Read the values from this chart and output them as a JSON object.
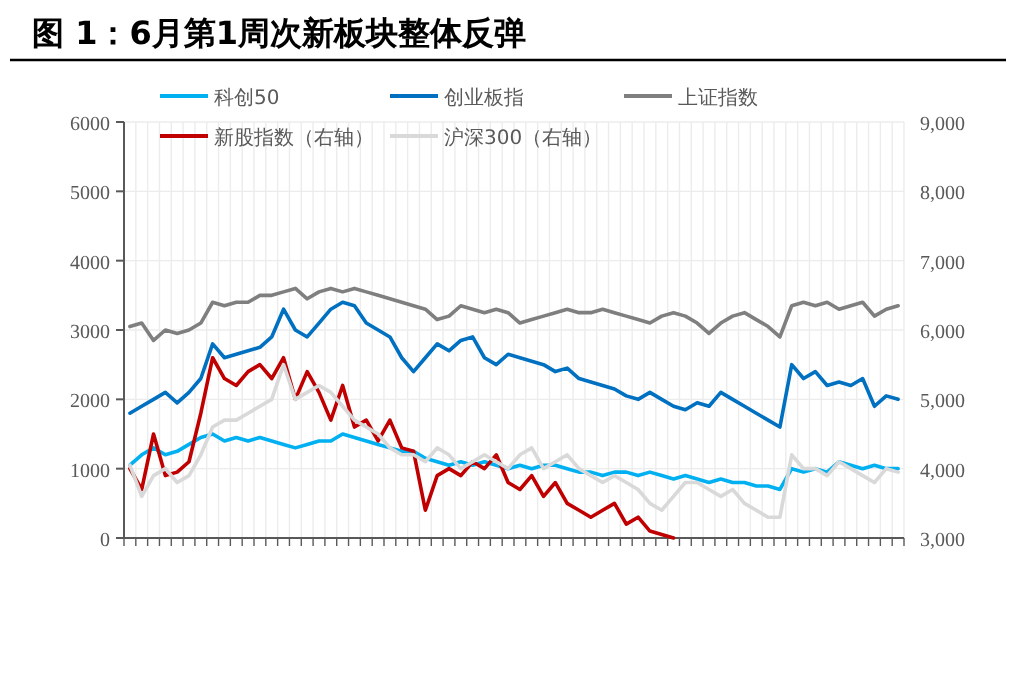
{
  "chart_data": {
    "type": "line",
    "title": "图 1：6月第1周次新板块整体反弹",
    "categories": [
      null,
      null,
      null,
      null,
      null,
      null,
      null,
      null,
      null,
      null,
      null,
      null,
      null,
      null,
      null,
      null,
      null,
      null,
      null,
      null,
      null,
      null,
      null,
      null,
      null,
      null,
      null,
      null,
      null,
      null,
      null,
      null,
      null,
      null,
      null,
      null,
      null,
      null,
      null,
      null,
      null,
      null,
      null,
      null,
      null,
      null,
      null,
      null,
      null,
      null,
      null,
      null,
      null,
      null,
      null,
      null,
      null,
      null,
      null,
      null,
      null,
      null,
      null,
      null,
      null,
      null
    ],
    "ylim": [
      0,
      6000
    ],
    "yticks": [
      0,
      1000,
      2000,
      3000,
      4000,
      5000,
      6000
    ],
    "y2lim": [
      3000,
      9000
    ],
    "y2ticks": [
      {
        "value": 3000,
        "label": "3,000"
      },
      {
        "value": 4000,
        "label": "4,000"
      },
      {
        "value": 5000,
        "label": "5,000"
      },
      {
        "value": 6000,
        "label": "6,000"
      },
      {
        "value": 7000,
        "label": "7,000"
      },
      {
        "value": 8000,
        "label": "8,000"
      },
      {
        "value": 9000,
        "label": "9,000"
      }
    ],
    "grid": true,
    "legend": "top",
    "line_style": "solid",
    "marker": "none",
    "series": [
      {
        "name": "科创50",
        "color": "#00b0f0",
        "values": [
          1050,
          1200,
          1300,
          1200,
          1250,
          1350,
          1450,
          1500,
          1400,
          1450,
          1400,
          1450,
          1400,
          1350,
          1300,
          1350,
          1400,
          1400,
          1500,
          1450,
          1400,
          1350,
          1300,
          1250,
          1250,
          1150,
          1100,
          1050,
          1100,
          1050,
          1100,
          1050,
          1000,
          1050,
          1000,
          1050,
          1050,
          1000,
          950,
          950,
          900,
          950,
          950,
          900,
          950,
          900,
          850,
          900,
          850,
          800,
          850,
          800,
          800,
          750,
          750,
          700,
          1000,
          950,
          1000,
          950,
          1100,
          1050,
          1000,
          1050,
          1000,
          1000
        ]
      },
      {
        "name": "创业板指",
        "color": "#0070c0",
        "values": [
          1800,
          1900,
          2000,
          2100,
          1950,
          2100,
          2300,
          2800,
          2600,
          2650,
          2700,
          2750,
          2900,
          3300,
          3000,
          2900,
          3100,
          3300,
          3400,
          3350,
          3100,
          3000,
          2900,
          2600,
          2400,
          2600,
          2800,
          2700,
          2850,
          2900,
          2600,
          2500,
          2650,
          2600,
          2550,
          2500,
          2400,
          2450,
          2300,
          2250,
          2200,
          2150,
          2050,
          2000,
          2100,
          2000,
          1900,
          1850,
          1950,
          1900,
          2100,
          2000,
          1900,
          1800,
          1700,
          1600,
          2500,
          2300,
          2400,
          2200,
          2250,
          2200,
          2300,
          1900,
          2050,
          2000
        ]
      },
      {
        "name": "上证指数",
        "color": "#7f7f7f",
        "values": [
          3050,
          3100,
          2850,
          3000,
          2950,
          3000,
          3100,
          3400,
          3350,
          3400,
          3400,
          3500,
          3500,
          3550,
          3600,
          3450,
          3550,
          3600,
          3550,
          3600,
          3550,
          3500,
          3450,
          3400,
          3350,
          3300,
          3150,
          3200,
          3350,
          3300,
          3250,
          3300,
          3250,
          3100,
          3150,
          3200,
          3250,
          3300,
          3250,
          3250,
          3300,
          3250,
          3200,
          3150,
          3100,
          3200,
          3250,
          3200,
          3100,
          2950,
          3100,
          3200,
          3250,
          3150,
          3050,
          2900,
          3350,
          3400,
          3350,
          3400,
          3300,
          3350,
          3400,
          3200,
          3300,
          3350
        ]
      },
      {
        "name": "新股指数（右轴）",
        "color": "#c00000",
        "axis": "y2",
        "values": [
          4000,
          3700,
          4500,
          3900,
          3950,
          4100,
          4800,
          5600,
          5300,
          5200,
          5400,
          5500,
          5300,
          5600,
          5000,
          5400,
          5100,
          4700,
          5200,
          4600,
          4700,
          4400,
          4700,
          4300,
          4250,
          3400,
          3900,
          4000,
          3900,
          4100,
          4000,
          4200,
          3800,
          3700,
          3900,
          3600,
          3800,
          3500,
          3400,
          3300,
          3400,
          3500,
          3200,
          3300,
          3100,
          3050,
          3000,
          null,
          null,
          null,
          null,
          null,
          null,
          null,
          null,
          null,
          null,
          null,
          null,
          null,
          null,
          null,
          null,
          null,
          null,
          null
        ]
      },
      {
        "name": "沪深300（右轴）",
        "color": "#d9d9d9",
        "axis": "y2",
        "values": [
          4050,
          3600,
          3900,
          4000,
          3800,
          3900,
          4200,
          4600,
          4700,
          4700,
          4800,
          4900,
          5000,
          5500,
          5000,
          5100,
          5200,
          5100,
          4900,
          4700,
          4600,
          4500,
          4300,
          4200,
          4200,
          4100,
          4300,
          4200,
          4000,
          4100,
          4200,
          4100,
          4000,
          4200,
          4300,
          4000,
          4100,
          4200,
          4000,
          3900,
          3800,
          3900,
          3800,
          3700,
          3500,
          3400,
          3600,
          3800,
          3800,
          3700,
          3600,
          3700,
          3500,
          3400,
          3300,
          3300,
          4200,
          4000,
          4000,
          3900,
          4100,
          4000,
          3900,
          3800,
          4000,
          3950
        ]
      }
    ]
  }
}
